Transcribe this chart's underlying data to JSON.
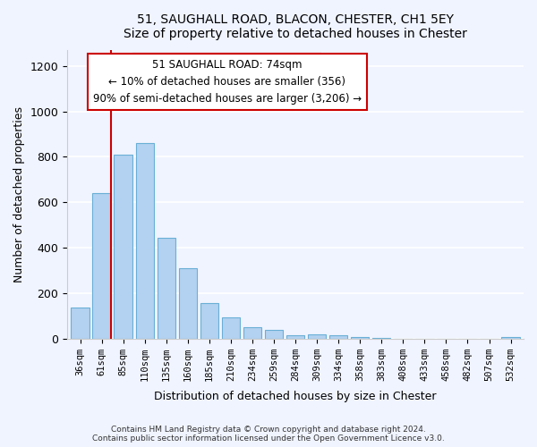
{
  "title": "51, SAUGHALL ROAD, BLACON, CHESTER, CH1 5EY",
  "subtitle": "Size of property relative to detached houses in Chester",
  "xlabel": "Distribution of detached houses by size in Chester",
  "ylabel": "Number of detached properties",
  "bar_labels": [
    "36sqm",
    "61sqm",
    "85sqm",
    "110sqm",
    "135sqm",
    "160sqm",
    "185sqm",
    "210sqm",
    "234sqm",
    "259sqm",
    "284sqm",
    "309sqm",
    "334sqm",
    "358sqm",
    "383sqm",
    "408sqm",
    "433sqm",
    "458sqm",
    "482sqm",
    "507sqm",
    "532sqm"
  ],
  "bar_values": [
    135,
    640,
    810,
    860,
    445,
    310,
    158,
    95,
    50,
    40,
    15,
    20,
    15,
    5,
    3,
    0,
    0,
    0,
    0,
    0,
    5
  ],
  "bar_color": "#b3d1f0",
  "bar_edge_color": "#6aafd6",
  "vline_x": 1,
  "vline_color": "#cc0000",
  "annotation_title": "51 SAUGHALL ROAD: 74sqm",
  "annotation_line1": "← 10% of detached houses are smaller (356)",
  "annotation_line2": "90% of semi-detached houses are larger (3,206) →",
  "annotation_box_color": "#ffffff",
  "annotation_box_edge": "#cc0000",
  "ylim": [
    0,
    1270
  ],
  "yticks": [
    0,
    200,
    400,
    600,
    800,
    1000,
    1200
  ],
  "footnote1": "Contains HM Land Registry data © Crown copyright and database right 2024.",
  "footnote2": "Contains public sector information licensed under the Open Government Licence v3.0.",
  "background_color": "#f0f4ff"
}
